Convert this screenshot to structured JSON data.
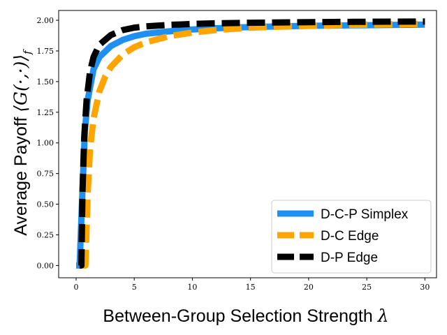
{
  "chart_data": {
    "type": "line",
    "title": "",
    "xlabel": "Between-Group Selection Strength λ",
    "ylabel": "Average Payoff ⟨G(·,·)⟩f",
    "xlim": [
      -1.5,
      31
    ],
    "ylim": [
      -0.1,
      2.08
    ],
    "x_ticks": [
      0,
      5,
      10,
      15,
      20,
      25,
      30
    ],
    "y_ticks": [
      0.0,
      0.25,
      0.5,
      0.75,
      1.0,
      1.25,
      1.5,
      1.75,
      2.0
    ],
    "x_tick_labels": [
      "0",
      "5",
      "10",
      "15",
      "20",
      "25",
      "30"
    ],
    "y_tick_labels": [
      "0.00",
      "0.25",
      "0.50",
      "0.75",
      "1.00",
      "1.25",
      "1.50",
      "1.75",
      "2.00"
    ],
    "grid": false,
    "legend_position": "lower-right",
    "series": [
      {
        "name": "D-C-P Simplex",
        "color": "#1f8ff2",
        "style": "solid",
        "x": [
          0,
          0.3,
          0.5,
          0.75,
          1,
          1.5,
          2,
          3,
          4,
          5,
          6,
          8,
          10,
          12,
          15,
          20,
          25,
          30
        ],
        "y": [
          0.0,
          0.0,
          0.5,
          1.1,
          1.35,
          1.6,
          1.7,
          1.79,
          1.84,
          1.87,
          1.89,
          1.91,
          1.925,
          1.935,
          1.945,
          1.955,
          1.96,
          1.965
        ]
      },
      {
        "name": "D-C Edge",
        "color": "#ffa500",
        "style": "dashed",
        "x": [
          0.6,
          0.8,
          1,
          1.2,
          1.5,
          2,
          2.5,
          3,
          4,
          5,
          6,
          8,
          10,
          12,
          15,
          20,
          25,
          30
        ],
        "y": [
          0.0,
          0.0,
          0.6,
          0.95,
          1.2,
          1.42,
          1.54,
          1.62,
          1.72,
          1.78,
          1.82,
          1.87,
          1.9,
          1.92,
          1.94,
          1.955,
          1.965,
          1.97
        ]
      },
      {
        "name": "D-P Edge",
        "color": "#000000",
        "style": "dashed",
        "x": [
          0.3,
          0.45,
          0.55,
          0.7,
          0.9,
          1.2,
          1.5,
          2,
          3,
          4,
          5,
          6,
          8,
          10,
          12,
          15,
          20,
          25,
          30
        ],
        "y": [
          0.0,
          0.0,
          0.6,
          1.05,
          1.35,
          1.58,
          1.7,
          1.8,
          1.88,
          1.92,
          1.94,
          1.95,
          1.962,
          1.97,
          1.975,
          1.98,
          1.985,
          1.988,
          1.99
        ]
      }
    ]
  }
}
